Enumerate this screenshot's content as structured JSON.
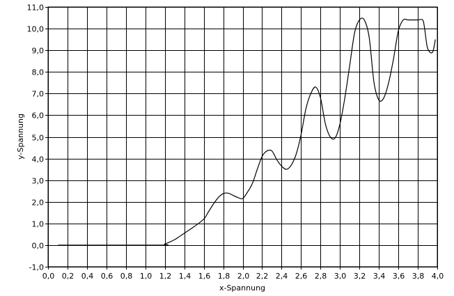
{
  "chart_data": {
    "type": "line",
    "xlabel": "x-Spannung",
    "ylabel": "y-Spannung",
    "xlim": [
      0.0,
      4.0
    ],
    "ylim": [
      -1.0,
      11.0
    ],
    "grid": true,
    "x_ticks": [
      "0,0",
      "0,2",
      "0,4",
      "0,6",
      "0,8",
      "1,0",
      "1,2",
      "1,4",
      "1,6",
      "1,8",
      "2,0",
      "2,2",
      "2,4",
      "2,6",
      "2,8",
      "3,0",
      "3,2",
      "3,4",
      "3,6",
      "3,8",
      "4,0"
    ],
    "y_ticks": [
      "11,0",
      "10,0",
      "9,0",
      "8,0",
      "7,0",
      "6,0",
      "5,0",
      "4,0",
      "3,0",
      "2,0",
      "1,0",
      "0,0",
      "-1,0"
    ],
    "x_tick_values": [
      0.0,
      0.2,
      0.4,
      0.6,
      0.8,
      1.0,
      1.2,
      1.4,
      1.6,
      1.8,
      2.0,
      2.2,
      2.4,
      2.6,
      2.8,
      3.0,
      3.2,
      3.4,
      3.6,
      3.8,
      4.0
    ],
    "y_tick_values": [
      11,
      10,
      9,
      8,
      7,
      6,
      5,
      4,
      3,
      2,
      1,
      0,
      -1
    ],
    "series": [
      {
        "color": "#000000",
        "x": [
          0.15,
          0.19,
          1.15,
          1.2,
          1.3,
          1.4,
          1.5,
          1.6,
          1.65,
          1.7,
          1.75,
          1.8,
          1.85,
          1.9,
          1.95,
          2.0,
          2.05,
          2.1,
          2.15,
          2.2,
          2.25,
          2.3,
          2.35,
          2.4,
          2.45,
          2.5,
          2.55,
          2.6,
          2.65,
          2.7,
          2.75,
          2.8,
          2.85,
          2.9,
          2.95,
          3.0,
          3.05,
          3.1,
          3.15,
          3.2,
          3.25,
          3.3,
          3.35,
          3.4,
          3.45,
          3.5,
          3.55,
          3.6,
          3.65,
          3.7,
          3.75,
          3.8,
          3.85,
          3.87,
          3.9,
          3.95,
          3.98
        ],
        "y": [
          0.0,
          0.0,
          0.0,
          0.05,
          0.25,
          0.55,
          0.85,
          1.2,
          1.55,
          1.9,
          2.2,
          2.38,
          2.4,
          2.3,
          2.2,
          2.15,
          2.45,
          2.85,
          3.5,
          4.1,
          4.35,
          4.35,
          3.95,
          3.65,
          3.5,
          3.7,
          4.2,
          5.1,
          6.3,
          7.0,
          7.3,
          6.8,
          5.6,
          5.0,
          4.95,
          5.6,
          6.8,
          8.3,
          9.8,
          10.4,
          10.4,
          9.6,
          7.5,
          6.7,
          6.8,
          7.5,
          8.6,
          9.9,
          10.4,
          10.4,
          10.4,
          10.4,
          10.4,
          10.0,
          9.1,
          8.9,
          9.5
        ]
      }
    ]
  }
}
